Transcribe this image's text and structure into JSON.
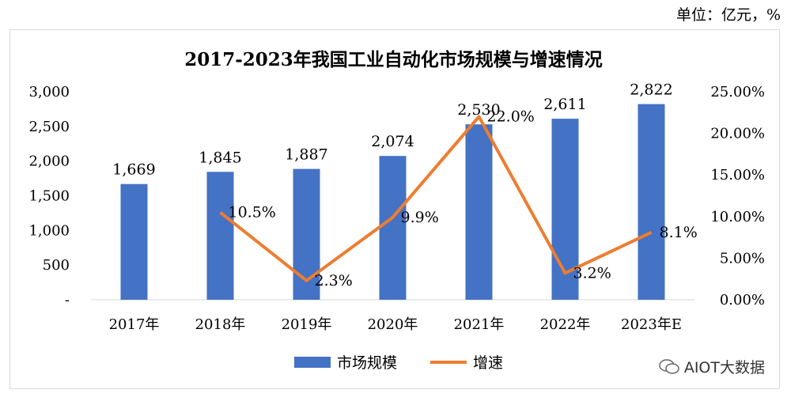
{
  "unit_label": "单位：亿元，%",
  "watermark": "AIOT大数据",
  "chart_data": {
    "type": "bar",
    "title": "2017-2023年我国工业自动化市场规模与增速情况",
    "categories": [
      "2017年",
      "2018年",
      "2019年",
      "2020年",
      "2021年",
      "2022年",
      "2023年E"
    ],
    "series": [
      {
        "name": "市场规模",
        "type": "bar",
        "axis": "left",
        "color": "#4472c4",
        "values": [
          1669,
          1845,
          1887,
          2074,
          2530,
          2611,
          2822
        ],
        "labels": [
          "1,669",
          "1,845",
          "1,887",
          "2,074",
          "2,530",
          "2,611",
          "2,822"
        ]
      },
      {
        "name": "增速",
        "type": "line",
        "axis": "right",
        "color": "#ed7d31",
        "values": [
          null,
          10.5,
          2.3,
          9.9,
          22.0,
          3.2,
          8.1
        ],
        "labels": [
          "",
          "10.5%",
          "2.3%",
          "9.9%",
          "22.0%",
          "3.2%",
          "8.1%"
        ]
      }
    ],
    "y_left": {
      "ylim": [
        0,
        3000
      ],
      "ticks": [
        0,
        500,
        1000,
        1500,
        2000,
        2500,
        3000
      ],
      "tick_labels": [
        "-",
        "500",
        "1,000",
        "1,500",
        "2,000",
        "2,500",
        "3,000"
      ]
    },
    "y_right": {
      "ylim": [
        0,
        25
      ],
      "ticks": [
        0,
        5,
        10,
        15,
        20,
        25
      ],
      "tick_labels": [
        "0.00%",
        "5.00%",
        "10.00%",
        "15.00%",
        "20.00%",
        "25.00%"
      ]
    },
    "grid": false,
    "legend_position": "bottom"
  }
}
